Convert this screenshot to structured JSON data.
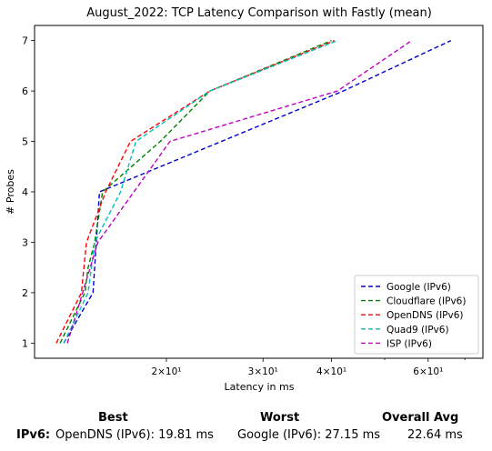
{
  "chart_data": {
    "type": "line",
    "title": "August_2022: TCP Latency Comparison with Fastly (mean)",
    "xlabel": "Latency in ms",
    "ylabel": "# Probes",
    "xscale": "log",
    "xlim": [
      11.5,
      75.5
    ],
    "ylim": [
      0.7,
      7.3
    ],
    "x_tick_labels": [
      {
        "value": 20,
        "label": "2×10¹"
      },
      {
        "value": 30,
        "label": "3×10¹"
      },
      {
        "value": 40,
        "label": "4×10¹"
      },
      {
        "value": 60,
        "label": "6×10¹"
      }
    ],
    "y_ticks": [
      1,
      2,
      3,
      4,
      5,
      6,
      7
    ],
    "grid": false,
    "legend_position": "lower-right",
    "line_style": "dashed",
    "series": [
      {
        "name": "Google (IPv6)",
        "color": "#0000cc",
        "x": [
          13.0,
          14.7,
          15.1,
          42.0,
          66.0
        ],
        "y": [
          1,
          2,
          4,
          6,
          7
        ]
      },
      {
        "name": "Cloudflare (IPv6)",
        "color": "#008000",
        "x": [
          12.8,
          14.2,
          14.4,
          14.8,
          15.3,
          19.5,
          24.0,
          40.0
        ],
        "y": [
          1,
          2,
          2.5,
          3,
          4,
          5,
          6,
          7
        ]
      },
      {
        "name": "OpenDNS (IPv6)",
        "color": "#ff0000",
        "x": [
          12.6,
          14.0,
          14.3,
          15.5,
          17.2,
          24.0,
          40.5
        ],
        "y": [
          1,
          2,
          3,
          4,
          5,
          6,
          7
        ]
      },
      {
        "name": "Quad9 (IPv6)",
        "color": "#00bfbf",
        "x": [
          13.0,
          14.4,
          14.8,
          16.5,
          17.6,
          24.0,
          41.0
        ],
        "y": [
          1,
          2,
          3,
          4,
          5,
          6,
          7
        ]
      },
      {
        "name": "ISP (IPv6)",
        "color": "#bf00bf",
        "x": [
          13.2,
          15.0,
          20.3,
          41.0,
          56.0
        ],
        "y": [
          1,
          3,
          5,
          6,
          7
        ]
      }
    ]
  },
  "summary": {
    "best_header": "Best",
    "worst_header": "Worst",
    "avg_header": "Overall Avg",
    "row_label": "IPv6:",
    "best_value": "OpenDNS (IPv6): 19.81 ms",
    "worst_value": "Google (IPv6): 27.15 ms",
    "avg_value": "22.64 ms"
  }
}
